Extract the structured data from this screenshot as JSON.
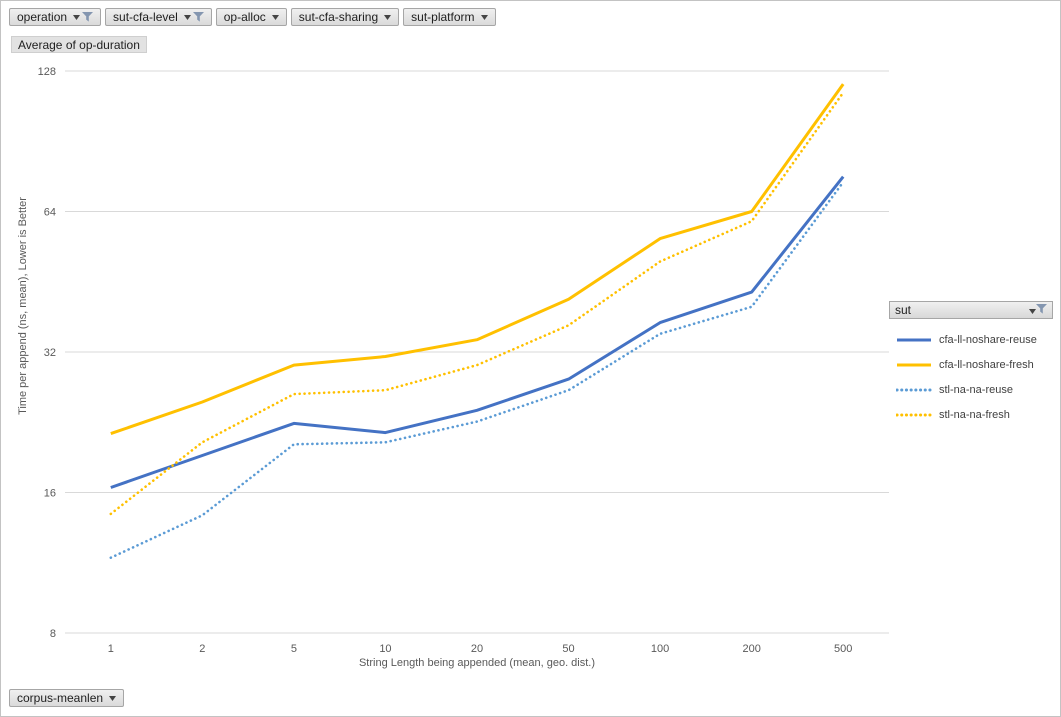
{
  "field_buttons_top": [
    {
      "label": "operation",
      "filtered": true
    },
    {
      "label": "sut-cfa-level",
      "filtered": true
    },
    {
      "label": "op-alloc",
      "filtered": false
    },
    {
      "label": "sut-cfa-sharing",
      "filtered": false
    },
    {
      "label": "sut-platform",
      "filtered": false
    }
  ],
  "value_field_label": "Average of op-duration",
  "field_buttons_bottom": [
    {
      "label": "corpus-meanlen",
      "filtered": false
    }
  ],
  "legend": {
    "header_label": "sut",
    "header_filtered": true
  },
  "colors": {
    "blue": "#4472C4",
    "gold": "#FFC000",
    "light_blue": "#5B9BD5",
    "gridline": "#D9D9D9",
    "axis_text": "#595959",
    "funnel": "#8496B0",
    "arrow": "#444444"
  },
  "chart_data": {
    "type": "line",
    "title": "",
    "xlabel": "String Length  being appended (mean, geo. dist.)",
    "ylabel": "Time per append (ns, mean),  Lower is Better",
    "x_scale": "category",
    "y_scale": "log2",
    "ylim": [
      8,
      128
    ],
    "y_ticks": [
      8,
      16,
      32,
      64,
      128
    ],
    "grid": "horizontal",
    "legend_position": "right",
    "categories": [
      "1",
      "2",
      "5",
      "10",
      "20",
      "50",
      "100",
      "200",
      "500"
    ],
    "series": [
      {
        "name": "cfa-ll-noshare-reuse",
        "color": "#4472C4",
        "line_style": "solid",
        "values": [
          16.4,
          19.2,
          22.5,
          21.5,
          24,
          28,
          37,
          43,
          76
        ]
      },
      {
        "name": "cfa-ll-noshare-fresh",
        "color": "#FFC000",
        "line_style": "solid",
        "values": [
          21.4,
          25,
          30,
          31.3,
          34,
          41.5,
          56,
          64,
          120
        ]
      },
      {
        "name": "stl-na-na-reuse",
        "color": "#5B9BD5",
        "line_style": "dotted",
        "values": [
          11.6,
          14.3,
          20.3,
          20.5,
          22.7,
          26.5,
          35,
          40,
          74
        ]
      },
      {
        "name": "stl-na-na-fresh",
        "color": "#FFC000",
        "line_style": "dotted",
        "values": [
          14.4,
          20.5,
          26,
          26.5,
          30,
          36.5,
          50,
          61,
          115
        ]
      }
    ]
  }
}
